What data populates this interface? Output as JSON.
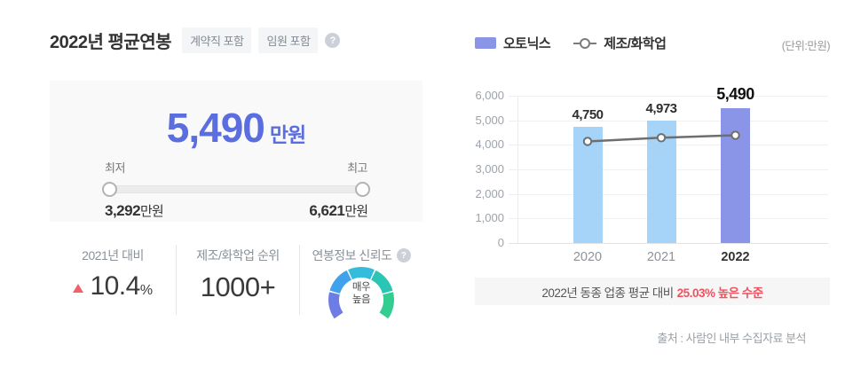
{
  "left_panel": {
    "title": "2022년 평균연봉",
    "badges": [
      "계약직 포함",
      "임원 포함"
    ],
    "help_icon_glyph": "?",
    "summary": {
      "value": "5,490",
      "unit": "만원",
      "min_label": "최저",
      "max_label": "최고",
      "min_value": "3,292",
      "min_unit": "만원",
      "max_value": "6,621",
      "max_unit": "만원"
    },
    "stats": [
      {
        "label": "2021년 대비",
        "value": "10.4",
        "suffix": "%",
        "direction": "up"
      },
      {
        "label": "제조/화학업 순위",
        "value": "1000+"
      },
      {
        "label": "연봉정보 신뢰도",
        "gauge_line1": "매우",
        "gauge_line2": "높음"
      }
    ]
  },
  "right_panel": {
    "legend": {
      "bar_label": "오토닉스",
      "line_label": "제조/화학업",
      "unit_note": "(단위:만원)"
    },
    "notice": {
      "prefix": "2022년 동종 업종 평균 대비",
      "highlight": "25.03% 높은 수준"
    },
    "source": "출처 : 사람인 내부 수집자료 분석"
  },
  "chart_data": {
    "type": "bar+line",
    "categories": [
      "2020",
      "2021",
      "2022"
    ],
    "series": [
      {
        "name": "오토닉스",
        "type": "bar",
        "values": [
          4750,
          4973,
          5490
        ]
      },
      {
        "name": "제조/화학업",
        "type": "line",
        "values": [
          4140,
          4290,
          4391
        ]
      }
    ],
    "highlight_category": "2022",
    "ylim": [
      0,
      6000
    ],
    "yticks": [
      0,
      1000,
      2000,
      3000,
      4000,
      5000,
      6000
    ],
    "unit": "만원",
    "grid": true,
    "legend_position": "top"
  },
  "colors": {
    "accent_blue": "#5a6edf",
    "bar_default": "#a6d4f8",
    "bar_highlight": "#8a95e8",
    "line_gray": "#6e6e6e",
    "status_red": "#f0515f",
    "gauge_segments": [
      "#6e7ce6",
      "#41a1ea",
      "#33bcdb",
      "#2ac5b4",
      "#33cd92"
    ]
  }
}
